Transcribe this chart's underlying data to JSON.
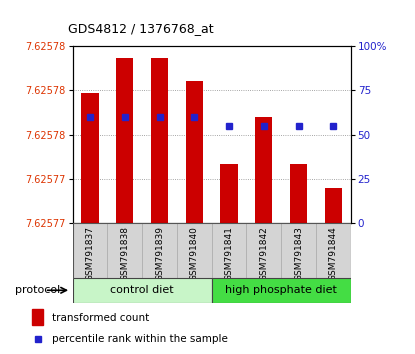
{
  "title": "GDS4812 / 1376768_at",
  "samples": [
    "GSM791837",
    "GSM791838",
    "GSM791839",
    "GSM791840",
    "GSM791841",
    "GSM791842",
    "GSM791843",
    "GSM791844"
  ],
  "red_values": [
    7.625781,
    7.625784,
    7.625784,
    7.625782,
    7.625775,
    7.625779,
    7.625775,
    7.625773
  ],
  "blue_values": [
    60,
    60,
    60,
    60,
    55,
    55,
    55,
    55
  ],
  "y_min": 7.62577,
  "y_max": 7.625785,
  "y_ticks": [
    7.62577,
    7.625775,
    7.625778,
    7.62578,
    7.625783,
    7.625785
  ],
  "right_y_ticks": [
    0,
    25,
    50,
    75,
    100
  ],
  "right_y_labels": [
    "0",
    "25",
    "50",
    "75",
    "100%"
  ],
  "protocol_groups": [
    {
      "label": "control diet",
      "start": 0,
      "end": 3,
      "color": "#c8f5c8"
    },
    {
      "label": "high phosphate diet",
      "start": 4,
      "end": 7,
      "color": "#44dd44"
    }
  ],
  "bar_color": "#cc0000",
  "dot_color": "#2222cc",
  "bar_width": 0.5,
  "legend_items": [
    {
      "label": "transformed count",
      "color": "#cc0000"
    },
    {
      "label": "percentile rank within the sample",
      "color": "#2222cc"
    }
  ],
  "title_color": "#000000",
  "left_label_color": "#dd3300",
  "right_label_color": "#2222cc",
  "grid_color": "#888888",
  "protocol_label": "protocol",
  "bg_color": "#ffffff"
}
